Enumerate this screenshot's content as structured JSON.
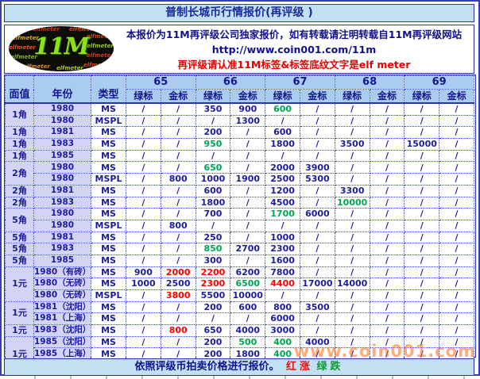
{
  "title": "普制长城币行情报价(再评级 )",
  "header": {
    "logo_main": "11M",
    "logo_pattern_word": "elfmeter",
    "line1": "本报价为11M再评级公司独家报价，如有转载请注明转载自11M再评级网站",
    "line2": "http://www.coin001.com/11m",
    "line3": "再评级请认准11M标签&标签底纹文字是elf meter"
  },
  "table": {
    "col_headers": {
      "face_value": "面值",
      "year": "年份",
      "type": "类型",
      "grades": [
        "65",
        "66",
        "67",
        "68",
        "69"
      ],
      "sub": [
        "绿标",
        "金标"
      ]
    },
    "groups": [
      {
        "face": "1角",
        "rows": [
          {
            "year": "1980",
            "type": "MS",
            "cells": [
              "/",
              "/",
              "350",
              "900",
              "600:g",
              "/",
              "/",
              "/",
              "/",
              "/"
            ]
          },
          {
            "year": "1980",
            "type": "MSPL",
            "cells": [
              "/",
              "/",
              "/",
              "1300",
              "/",
              "/",
              "/",
              "/",
              "/",
              "/"
            ]
          }
        ]
      },
      {
        "face": "1角",
        "rows": [
          {
            "year": "1981",
            "type": "MS",
            "cells": [
              "/",
              "/",
              "200",
              "/",
              "600",
              "/",
              "/",
              "/",
              "/",
              "/"
            ]
          }
        ]
      },
      {
        "face": "1角",
        "rows": [
          {
            "year": "1983",
            "type": "MS",
            "cells": [
              "/",
              "/",
              "950:g",
              "/",
              "1800",
              "/",
              "3500",
              "/",
              "15000",
              "/"
            ]
          }
        ]
      },
      {
        "face": "1角",
        "rows": [
          {
            "year": "1985",
            "type": "MS",
            "cells": [
              "/",
              "/",
              "/",
              "/",
              "/",
              "/",
              "/",
              "/",
              "/",
              "/"
            ]
          }
        ]
      },
      {
        "face": "2角",
        "rows": [
          {
            "year": "1980",
            "type": "MS",
            "cells": [
              "/",
              "/",
              "650:g",
              "/",
              "2000",
              "3900",
              "/",
              "/",
              "/",
              "/"
            ]
          },
          {
            "year": "1980",
            "type": "MSPL",
            "cells": [
              "/",
              "800",
              "1000",
              "1900",
              "2500",
              "5300",
              "/",
              "/",
              "/",
              "/"
            ]
          }
        ]
      },
      {
        "face": "2角",
        "rows": [
          {
            "year": "1981",
            "type": "MS",
            "cells": [
              "/",
              "/",
              "600",
              "/",
              "1200",
              "/",
              "3300",
              "/",
              "/",
              "/"
            ]
          }
        ]
      },
      {
        "face": "2角",
        "rows": [
          {
            "year": "1983",
            "type": "MS",
            "cells": [
              "/",
              "/",
              "1800",
              "/",
              "4500",
              "/",
              "10000:g",
              "/",
              "/",
              "/"
            ]
          }
        ]
      },
      {
        "face": "5角",
        "rows": [
          {
            "year": "1980",
            "type": "MS",
            "cells": [
              "/",
              "/",
              "700",
              "/",
              "1700:g",
              "6000",
              "/",
              "/",
              "/",
              "/"
            ]
          },
          {
            "year": "1980",
            "type": "MSPL",
            "cells": [
              "/",
              "800",
              "/",
              "/",
              "/",
              "/",
              "/",
              "/",
              "/",
              "/"
            ]
          }
        ]
      },
      {
        "face": "5角",
        "rows": [
          {
            "year": "1981",
            "type": "MS",
            "cells": [
              "/",
              "/",
              "250",
              "/",
              "1000",
              "/",
              "/",
              "/",
              "/",
              "/"
            ]
          }
        ]
      },
      {
        "face": "5角",
        "rows": [
          {
            "year": "1983",
            "type": "MS",
            "cells": [
              "/",
              "/",
              "850:g",
              "2700",
              "2300",
              "/",
              "/",
              "/",
              "/",
              "/"
            ]
          }
        ]
      },
      {
        "face": "5角",
        "rows": [
          {
            "year": "1985",
            "type": "MS",
            "cells": [
              "/",
              "/",
              "300",
              "/",
              "1600",
              "/",
              "/",
              "/",
              "/",
              "/"
            ]
          }
        ]
      },
      {
        "face": "1元",
        "rows": [
          {
            "year": "1980（有砖）",
            "type": "MS",
            "cells": [
              "900",
              "2000:r",
              "2200:r",
              "6200",
              "7800",
              "/",
              "/",
              "/",
              "/",
              "/"
            ]
          },
          {
            "year": "1980（无砖）",
            "type": "MS",
            "cells": [
              "1000",
              "2500",
              "2300:r",
              "6500:g",
              "4400:r",
              "17000",
              "14000",
              "/",
              "/",
              "/"
            ]
          },
          {
            "year": "1980（无砖）",
            "type": "MSPL",
            "cells": [
              "/",
              "3800:r",
              "5500",
              "10000",
              "/",
              "/",
              "/",
              "/",
              "/",
              "/"
            ]
          }
        ]
      },
      {
        "face": "1元",
        "rows": [
          {
            "year": "1981（沈阳）",
            "type": "MS",
            "cells": [
              "/",
              "/",
              "200",
              "600",
              "800",
              "3500",
              "/",
              "/",
              "/",
              "/"
            ]
          },
          {
            "year": "1981（上海）",
            "type": "MS",
            "cells": [
              "/",
              "/",
              "/",
              "/",
              "6000",
              "/",
              "/",
              "/",
              "/",
              "/"
            ]
          }
        ]
      },
      {
        "face": "1元",
        "rows": [
          {
            "year": "1983（沈阳）",
            "type": "MS",
            "cells": [
              "/",
              "800:r",
              "650",
              "4000",
              "3000",
              "/",
              "/",
              "/",
              "/",
              "/"
            ]
          }
        ]
      },
      {
        "face": "1元",
        "rows": [
          {
            "year": "1985（沈阳）",
            "type": "MS",
            "cells": [
              "/",
              "/",
              "200",
              "500:g",
              "400:g",
              "4000",
              "/",
              "/",
              "/",
              "/"
            ]
          },
          {
            "year": "1985（上海）",
            "type": "MS",
            "cells": [
              "/",
              "/",
              "200",
              "1800",
              "400:g",
              "/",
              "/",
              "/",
              "/",
              "/"
            ]
          },
          {
            "year": "1985（少砖）",
            "type": "MS",
            "cells": [
              "/",
              "/",
              "300",
              "/",
              "1100",
              "/",
              "/",
              "/",
              "/",
              "/"
            ]
          }
        ]
      }
    ]
  },
  "footer": {
    "note": "依照评级币拍卖价格进行报价。",
    "red_label": "红涨",
    "green_label": "绿跌"
  },
  "watermark": "www.coin001.com",
  "colors": {
    "price_up_red": "#FF0000",
    "price_down_green": "#00A651",
    "text_navy": "#1C1C9C",
    "header_bg": "#A9CCEF",
    "panel_blue": "#C3E0F2",
    "lavender": "#D3D3F4"
  }
}
